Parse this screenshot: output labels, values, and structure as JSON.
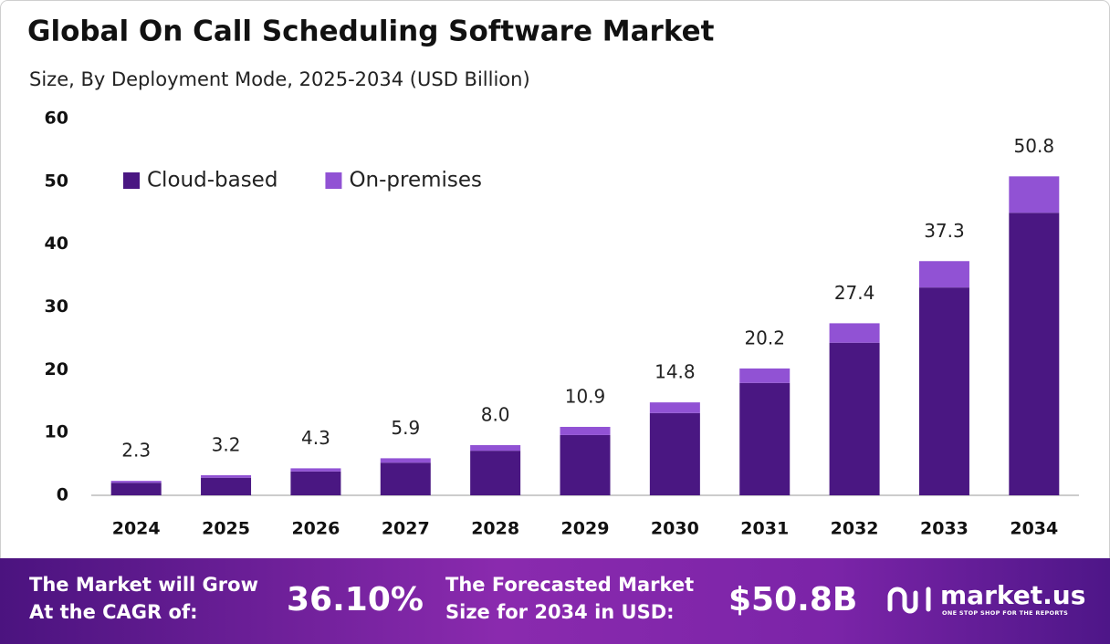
{
  "chart_data": {
    "type": "stacked_bar",
    "title": "Global On Call Scheduling Software Market",
    "subtitle": "Size, By Deployment Mode, 2025-2034 (USD Billion)",
    "categories": [
      "2024",
      "2025",
      "2026",
      "2027",
      "2028",
      "2029",
      "2030",
      "2031",
      "2032",
      "2033",
      "2034"
    ],
    "series": [
      {
        "name": "Cloud-based",
        "color": "#4a1782",
        "values": [
          2.0,
          2.8,
          3.8,
          5.2,
          7.1,
          9.6,
          13.1,
          17.9,
          24.3,
          33.1,
          45.0
        ]
      },
      {
        "name": "On-premises",
        "color": "#9152d4",
        "values": [
          0.3,
          0.4,
          0.5,
          0.7,
          0.9,
          1.3,
          1.7,
          2.3,
          3.1,
          4.2,
          5.8
        ]
      }
    ],
    "totals": [
      2.3,
      3.2,
      4.3,
      5.9,
      8.0,
      10.9,
      14.8,
      20.2,
      27.4,
      37.3,
      50.8
    ],
    "total_labels": [
      "2.3",
      "3.2",
      "4.3",
      "5.9",
      "8.0",
      "10.9",
      "14.8",
      "20.2",
      "27.4",
      "37.3",
      "50.8"
    ],
    "ylim": [
      0,
      60
    ],
    "yticks": [
      0,
      10,
      20,
      30,
      40,
      50,
      60
    ],
    "grid": false,
    "legend": "top-left"
  },
  "footer": {
    "cagr_text": [
      "The Market will Grow",
      "At the CAGR of:"
    ],
    "cagr_value": "36.10%",
    "forecast_text": [
      "The Forecasted Market",
      "Size for 2034 in USD:"
    ],
    "forecast_value": "$50.8B",
    "brand": "market.us",
    "tagline": "ONE STOP SHOP FOR THE REPORTS"
  }
}
